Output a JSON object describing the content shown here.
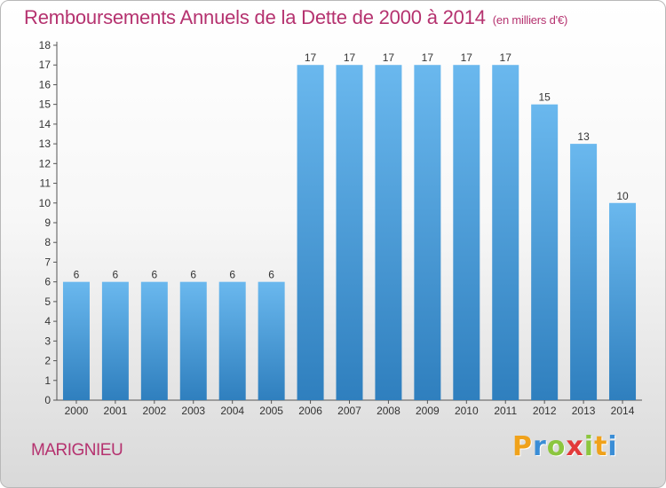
{
  "title": "Remboursements Annuels de la Dette de 2000 à 2014",
  "unit": "(en milliers d'€)",
  "commune": "MARIGNIEU",
  "logo": {
    "letters": [
      "P",
      "r",
      "o",
      "x",
      "i",
      "t",
      "i"
    ],
    "colors": [
      "#f0a21b",
      "#3a8dd6",
      "#8cc63f",
      "#e23a3a",
      "#8cc63f",
      "#f0a21b",
      "#3a8dd6"
    ]
  },
  "colors": {
    "bar_light": "#6ab8ee",
    "bar_dark": "#2f7fbe",
    "accent": "#b5326f"
  },
  "chart_data": {
    "type": "bar",
    "title": "Remboursements Annuels de la Dette de 2000 à 2014",
    "ylabel": "",
    "xlabel": "",
    "categories": [
      "2000",
      "2001",
      "2002",
      "2003",
      "2004",
      "2005",
      "2006",
      "2007",
      "2008",
      "2009",
      "2010",
      "2011",
      "2012",
      "2013",
      "2014"
    ],
    "values": [
      6,
      6,
      6,
      6,
      6,
      6,
      17,
      17,
      17,
      17,
      17,
      17,
      15,
      13,
      10
    ],
    "ylim": [
      0,
      18
    ],
    "yticks": [
      0,
      1,
      2,
      3,
      4,
      5,
      6,
      7,
      8,
      9,
      10,
      11,
      12,
      13,
      14,
      15,
      16,
      17,
      18
    ],
    "grid": false,
    "legend": "none"
  }
}
